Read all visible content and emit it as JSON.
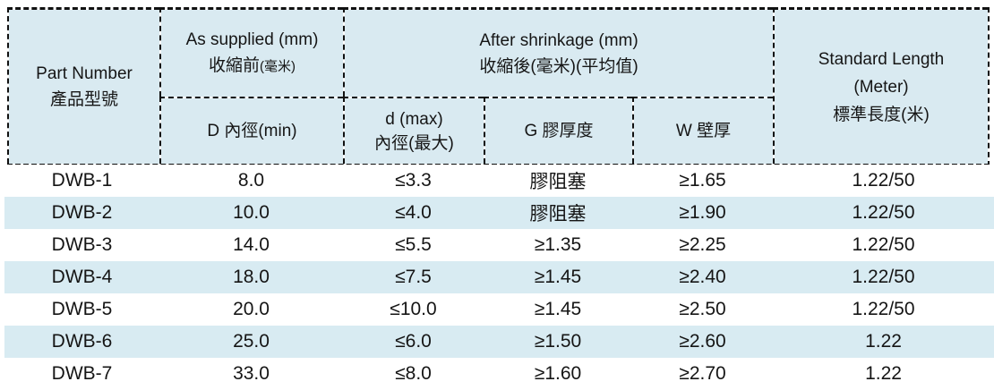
{
  "table": {
    "header": {
      "part_number": {
        "en": "Part Number",
        "zh": "產品型號"
      },
      "as_supplied": {
        "en": "As supplied (mm)",
        "zh_main": "收縮前",
        "zh_paren": "(毫米)"
      },
      "after_shrinkage": {
        "en": "After shrinkage (mm)",
        "zh": "收縮後(毫米)(平均值)"
      },
      "standard_length": {
        "en_line1": "Standard Length",
        "en_line2": "(Meter)",
        "zh": "標準長度(米)"
      },
      "sub": {
        "d_min": "D 內徑(min)",
        "d_max_line1": "d (max)",
        "d_max_line2": "內徑(最大)",
        "g": "G 膠厚度",
        "w": "W 壁厚"
      }
    },
    "rows": [
      {
        "part": "DWB-1",
        "d_min": "8.0",
        "d_max": "≤3.3",
        "g": "膠阻塞",
        "w": "≥1.65",
        "length": "1.22/50"
      },
      {
        "part": "DWB-2",
        "d_min": "10.0",
        "d_max": "≤4.0",
        "g": "膠阻塞",
        "w": "≥1.90",
        "length": "1.22/50"
      },
      {
        "part": "DWB-3",
        "d_min": "14.0",
        "d_max": "≤5.5",
        "g": "≥1.35",
        "w": "≥2.25",
        "length": "1.22/50"
      },
      {
        "part": "DWB-4",
        "d_min": "18.0",
        "d_max": "≤7.5",
        "g": "≥1.45",
        "w": "≥2.40",
        "length": "1.22/50"
      },
      {
        "part": "DWB-5",
        "d_min": "20.0",
        "d_max": "≤10.0",
        "g": "≥1.45",
        "w": "≥2.50",
        "length": "1.22/50"
      },
      {
        "part": "DWB-6",
        "d_min": "25.0",
        "d_max": "≤6.0",
        "g": "≥1.50",
        "w": "≥2.60",
        "length": "1.22"
      },
      {
        "part": "DWB-7",
        "d_min": "33.0",
        "d_max": "≤8.0",
        "g": "≥1.60",
        "w": "≥2.70",
        "length": "1.22"
      }
    ],
    "colors": {
      "header_bg": "#d9eaf1",
      "stripe_bg": "#d8ebf2",
      "border": "#111111",
      "text": "#151515"
    }
  }
}
